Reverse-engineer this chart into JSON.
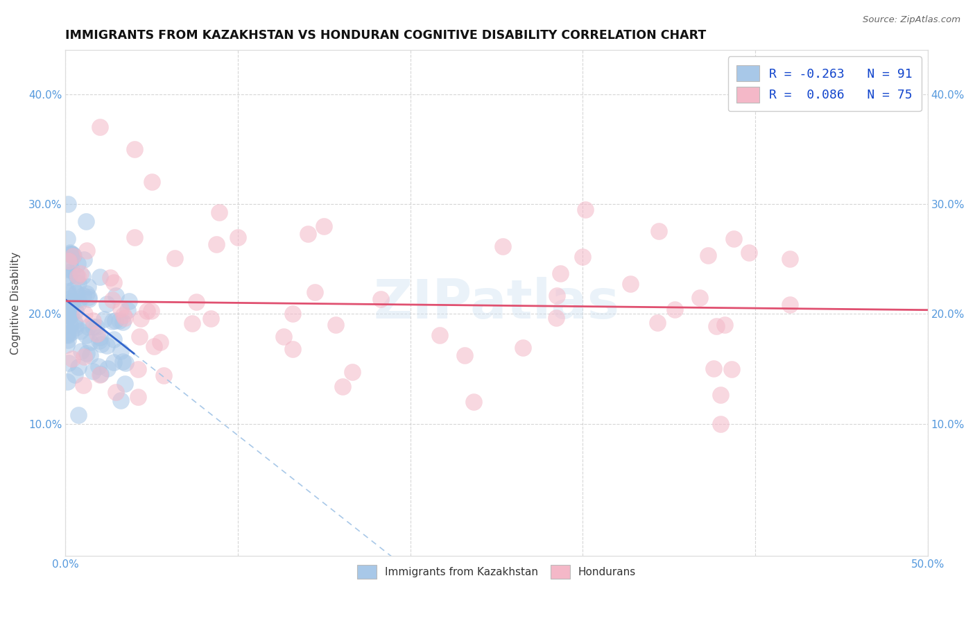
{
  "title": "IMMIGRANTS FROM KAZAKHSTAN VS HONDURAN COGNITIVE DISABILITY CORRELATION CHART",
  "source": "Source: ZipAtlas.com",
  "ylabel": "Cognitive Disability",
  "xlim": [
    0.0,
    0.5
  ],
  "ylim": [
    -0.02,
    0.44
  ],
  "xticks": [
    0.0,
    0.1,
    0.2,
    0.3,
    0.4,
    0.5
  ],
  "xticklabels": [
    "0.0%",
    "",
    "",
    "",
    "",
    "50.0%"
  ],
  "yticks": [
    0.1,
    0.2,
    0.3,
    0.4
  ],
  "yticklabels": [
    "10.0%",
    "20.0%",
    "30.0%",
    "40.0%"
  ],
  "legend_label1": "R = -0.263   N = 91",
  "legend_label2": "R =  0.086   N = 75",
  "color_kaz": "#a8c8e8",
  "color_hon": "#f4b8c8",
  "trendline_kaz_solid": "#3366cc",
  "trendline_kaz_dashed": "#a8c8e8",
  "trendline_hon": "#e05070",
  "watermark": "ZIPatlas",
  "bg_color": "#ffffff",
  "grid_color": "#cccccc",
  "tick_color": "#5599dd",
  "bottom_legend_label1": "Immigrants from Kazakhstan",
  "bottom_legend_label2": "Hondurans"
}
